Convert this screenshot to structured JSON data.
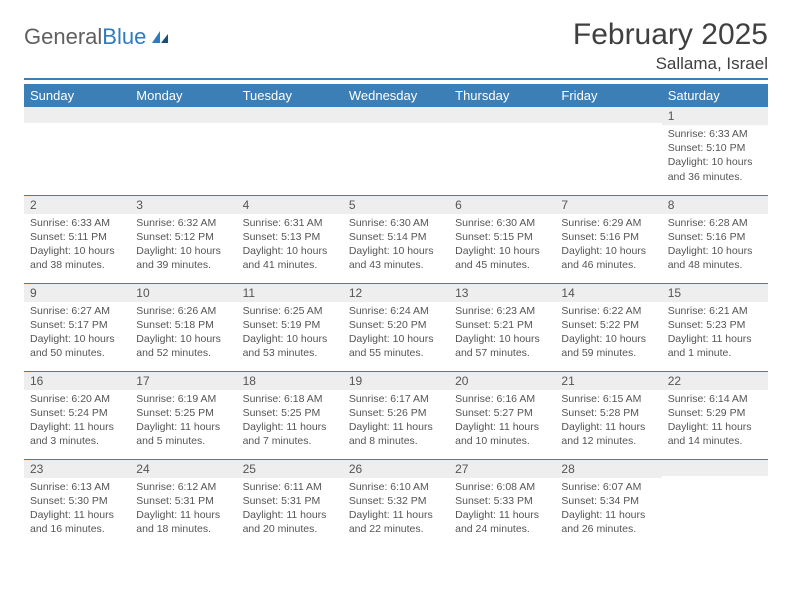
{
  "brand": {
    "name_a": "General",
    "name_b": "Blue"
  },
  "title": "February 2025",
  "location": "Sallama, Israel",
  "colors": {
    "accent": "#3b7fb6",
    "header_bg": "#3b7fb6",
    "header_text": "#ffffff",
    "daynum_bg": "#eeeeee",
    "text": "#555555",
    "title_text": "#404040"
  },
  "dow": [
    "Sunday",
    "Monday",
    "Tuesday",
    "Wednesday",
    "Thursday",
    "Friday",
    "Saturday"
  ],
  "weeks": [
    [
      {
        "n": "",
        "lines": []
      },
      {
        "n": "",
        "lines": []
      },
      {
        "n": "",
        "lines": []
      },
      {
        "n": "",
        "lines": []
      },
      {
        "n": "",
        "lines": []
      },
      {
        "n": "",
        "lines": []
      },
      {
        "n": "1",
        "lines": [
          "Sunrise: 6:33 AM",
          "Sunset: 5:10 PM",
          "Daylight: 10 hours and 36 minutes."
        ]
      }
    ],
    [
      {
        "n": "2",
        "lines": [
          "Sunrise: 6:33 AM",
          "Sunset: 5:11 PM",
          "Daylight: 10 hours and 38 minutes."
        ]
      },
      {
        "n": "3",
        "lines": [
          "Sunrise: 6:32 AM",
          "Sunset: 5:12 PM",
          "Daylight: 10 hours and 39 minutes."
        ]
      },
      {
        "n": "4",
        "lines": [
          "Sunrise: 6:31 AM",
          "Sunset: 5:13 PM",
          "Daylight: 10 hours and 41 minutes."
        ]
      },
      {
        "n": "5",
        "lines": [
          "Sunrise: 6:30 AM",
          "Sunset: 5:14 PM",
          "Daylight: 10 hours and 43 minutes."
        ]
      },
      {
        "n": "6",
        "lines": [
          "Sunrise: 6:30 AM",
          "Sunset: 5:15 PM",
          "Daylight: 10 hours and 45 minutes."
        ]
      },
      {
        "n": "7",
        "lines": [
          "Sunrise: 6:29 AM",
          "Sunset: 5:16 PM",
          "Daylight: 10 hours and 46 minutes."
        ]
      },
      {
        "n": "8",
        "lines": [
          "Sunrise: 6:28 AM",
          "Sunset: 5:16 PM",
          "Daylight: 10 hours and 48 minutes."
        ]
      }
    ],
    [
      {
        "n": "9",
        "lines": [
          "Sunrise: 6:27 AM",
          "Sunset: 5:17 PM",
          "Daylight: 10 hours and 50 minutes."
        ]
      },
      {
        "n": "10",
        "lines": [
          "Sunrise: 6:26 AM",
          "Sunset: 5:18 PM",
          "Daylight: 10 hours and 52 minutes."
        ]
      },
      {
        "n": "11",
        "lines": [
          "Sunrise: 6:25 AM",
          "Sunset: 5:19 PM",
          "Daylight: 10 hours and 53 minutes."
        ]
      },
      {
        "n": "12",
        "lines": [
          "Sunrise: 6:24 AM",
          "Sunset: 5:20 PM",
          "Daylight: 10 hours and 55 minutes."
        ]
      },
      {
        "n": "13",
        "lines": [
          "Sunrise: 6:23 AM",
          "Sunset: 5:21 PM",
          "Daylight: 10 hours and 57 minutes."
        ]
      },
      {
        "n": "14",
        "lines": [
          "Sunrise: 6:22 AM",
          "Sunset: 5:22 PM",
          "Daylight: 10 hours and 59 minutes."
        ]
      },
      {
        "n": "15",
        "lines": [
          "Sunrise: 6:21 AM",
          "Sunset: 5:23 PM",
          "Daylight: 11 hours and 1 minute."
        ]
      }
    ],
    [
      {
        "n": "16",
        "lines": [
          "Sunrise: 6:20 AM",
          "Sunset: 5:24 PM",
          "Daylight: 11 hours and 3 minutes."
        ]
      },
      {
        "n": "17",
        "lines": [
          "Sunrise: 6:19 AM",
          "Sunset: 5:25 PM",
          "Daylight: 11 hours and 5 minutes."
        ]
      },
      {
        "n": "18",
        "lines": [
          "Sunrise: 6:18 AM",
          "Sunset: 5:25 PM",
          "Daylight: 11 hours and 7 minutes."
        ]
      },
      {
        "n": "19",
        "lines": [
          "Sunrise: 6:17 AM",
          "Sunset: 5:26 PM",
          "Daylight: 11 hours and 8 minutes."
        ]
      },
      {
        "n": "20",
        "lines": [
          "Sunrise: 6:16 AM",
          "Sunset: 5:27 PM",
          "Daylight: 11 hours and 10 minutes."
        ]
      },
      {
        "n": "21",
        "lines": [
          "Sunrise: 6:15 AM",
          "Sunset: 5:28 PM",
          "Daylight: 11 hours and 12 minutes."
        ]
      },
      {
        "n": "22",
        "lines": [
          "Sunrise: 6:14 AM",
          "Sunset: 5:29 PM",
          "Daylight: 11 hours and 14 minutes."
        ]
      }
    ],
    [
      {
        "n": "23",
        "lines": [
          "Sunrise: 6:13 AM",
          "Sunset: 5:30 PM",
          "Daylight: 11 hours and 16 minutes."
        ]
      },
      {
        "n": "24",
        "lines": [
          "Sunrise: 6:12 AM",
          "Sunset: 5:31 PM",
          "Daylight: 11 hours and 18 minutes."
        ]
      },
      {
        "n": "25",
        "lines": [
          "Sunrise: 6:11 AM",
          "Sunset: 5:31 PM",
          "Daylight: 11 hours and 20 minutes."
        ]
      },
      {
        "n": "26",
        "lines": [
          "Sunrise: 6:10 AM",
          "Sunset: 5:32 PM",
          "Daylight: 11 hours and 22 minutes."
        ]
      },
      {
        "n": "27",
        "lines": [
          "Sunrise: 6:08 AM",
          "Sunset: 5:33 PM",
          "Daylight: 11 hours and 24 minutes."
        ]
      },
      {
        "n": "28",
        "lines": [
          "Sunrise: 6:07 AM",
          "Sunset: 5:34 PM",
          "Daylight: 11 hours and 26 minutes."
        ]
      },
      {
        "n": "",
        "lines": []
      }
    ]
  ]
}
